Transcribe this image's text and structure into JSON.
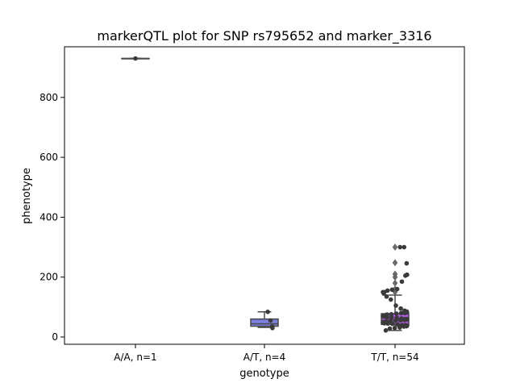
{
  "chart_data": {
    "type": "box",
    "title": "markerQTL plot for SNP rs795652 and marker_3316",
    "xlabel": "genotype",
    "ylabel": "phenotype",
    "categories": [
      "A/A, n=1",
      "A/T, n=4",
      "T/T, n=54"
    ],
    "ylim": [
      -22,
      950
    ],
    "yticks": [
      0,
      200,
      400,
      600,
      800
    ],
    "grid": false,
    "legend": "none",
    "colors": {
      "AA_box": "#8fd98b",
      "AT_box": "#7b7fe0",
      "TT_box": "#b05be0",
      "lines": "#4a4a4a",
      "points": "#3a3a3a"
    },
    "boxes": [
      {
        "category": "A/A, n=1",
        "whisker_low": 930,
        "q1": 930,
        "median": 930,
        "q3": 930,
        "whisker_high": 930,
        "outliers": []
      },
      {
        "category": "A/T, n=4",
        "whisker_low": 32,
        "q1": 36,
        "median": 44,
        "q3": 60,
        "whisker_high": 84,
        "outliers": []
      },
      {
        "category": "T/T, n=54",
        "whisker_low": 22,
        "q1": 42,
        "median": 55,
        "q3": 78,
        "whisker_high": 140,
        "outliers": [
          150,
          160,
          180,
          200,
          210,
          248,
          300
        ]
      }
    ],
    "points": [
      {
        "category": "A/A, n=1",
        "values": [
          930
        ]
      },
      {
        "category": "A/T, n=4",
        "values": [
          84,
          55,
          35,
          30
        ]
      },
      {
        "category": "T/T, n=54",
        "values": [
          300,
          300,
          246,
          208,
          205,
          185,
          160,
          158,
          155,
          150,
          150,
          145,
          135,
          125,
          105,
          95,
          88,
          85,
          82,
          80,
          80,
          78,
          76,
          75,
          72,
          70,
          68,
          66,
          65,
          64,
          62,
          60,
          60,
          58,
          57,
          56,
          55,
          54,
          52,
          50,
          48,
          46,
          45,
          44,
          42,
          40,
          40,
          38,
          36,
          35,
          32,
          30,
          28,
          22
        ]
      }
    ]
  }
}
